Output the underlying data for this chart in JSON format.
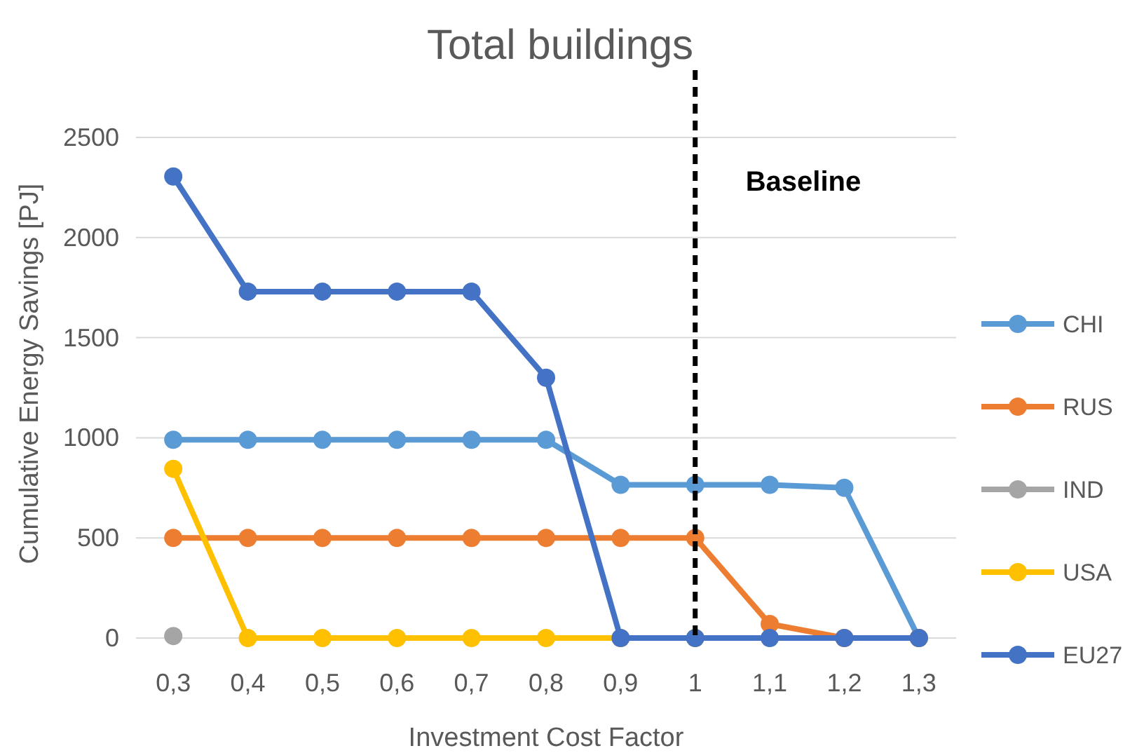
{
  "chart_data": {
    "type": "line",
    "title": "Total buildings",
    "xlabel": "Investment Cost Factor",
    "ylabel": "Cumulative Energy Savings [PJ]",
    "x": [
      0.3,
      0.4,
      0.5,
      0.6,
      0.7,
      0.8,
      0.9,
      1,
      1.1,
      1.2,
      1.3
    ],
    "xlim": [
      0.25,
      1.35
    ],
    "xticks": [
      {
        "value": 0.3,
        "label": "0,3"
      },
      {
        "value": 0.4,
        "label": "0,4"
      },
      {
        "value": 0.5,
        "label": "0,5"
      },
      {
        "value": 0.6,
        "label": "0,6"
      },
      {
        "value": 0.7,
        "label": "0,7"
      },
      {
        "value": 0.8,
        "label": "0,8"
      },
      {
        "value": 0.9,
        "label": "0,9"
      },
      {
        "value": 1,
        "label": "1"
      },
      {
        "value": 1.1,
        "label": "1,1"
      },
      {
        "value": 1.2,
        "label": "1,2"
      },
      {
        "value": 1.3,
        "label": "1,3"
      }
    ],
    "ylim": [
      0,
      2500
    ],
    "yticks": [
      0,
      500,
      1000,
      1500,
      2000,
      2500
    ],
    "grid": "y",
    "legend": "right",
    "marker": "circle",
    "line_style": "solid",
    "ref_lines": [
      {
        "axis": "x",
        "value": 1,
        "label": "Baseline",
        "color": "#000000",
        "line_style": "dashed"
      }
    ],
    "series": [
      {
        "name": "CHI",
        "color": "#5b9bd5",
        "values": [
          990,
          990,
          990,
          990,
          990,
          990,
          765,
          765,
          765,
          750,
          0
        ]
      },
      {
        "name": "RUS",
        "color": "#ed7d31",
        "values": [
          500,
          500,
          500,
          500,
          500,
          500,
          500,
          500,
          70,
          0,
          0
        ]
      },
      {
        "name": "IND",
        "color": "#a5a5a5",
        "values": [
          10,
          null,
          null,
          null,
          null,
          null,
          null,
          null,
          null,
          null,
          null
        ]
      },
      {
        "name": "USA",
        "color": "#ffc000",
        "values": [
          845,
          0,
          0,
          0,
          0,
          0,
          0,
          0,
          null,
          null,
          null
        ]
      },
      {
        "name": "EU27",
        "color": "#4472c4",
        "values": [
          2305,
          1730,
          1730,
          1730,
          1730,
          1300,
          0,
          0,
          0,
          0,
          0
        ]
      }
    ]
  }
}
